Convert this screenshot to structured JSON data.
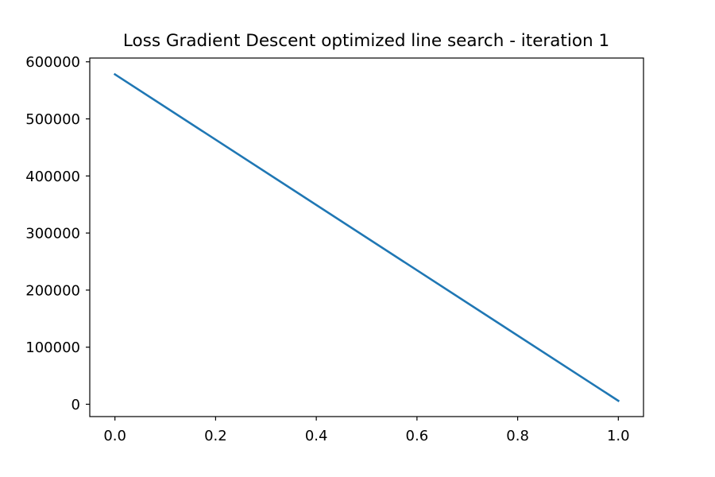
{
  "chart_data": {
    "type": "line",
    "title": "Loss Gradient Descent optimized line search - iteration 1",
    "xlabel": "",
    "ylabel": "",
    "xlim": [
      -0.05,
      1.05
    ],
    "ylim": [
      -21600,
      606600
    ],
    "grid": false,
    "x_ticks": [
      0.0,
      0.2,
      0.4,
      0.6,
      0.8,
      1.0
    ],
    "x_tick_labels": [
      "0.0",
      "0.2",
      "0.4",
      "0.6",
      "0.8",
      "1.0"
    ],
    "y_ticks": [
      0,
      100000,
      200000,
      300000,
      400000,
      500000,
      600000
    ],
    "y_tick_labels": [
      "0",
      "100000",
      "200000",
      "300000",
      "400000",
      "500000",
      "600000"
    ],
    "series": [
      {
        "color": "#1f77b4",
        "x": [
          0.0,
          1.0
        ],
        "y": [
          578000,
          6000
        ]
      }
    ]
  }
}
